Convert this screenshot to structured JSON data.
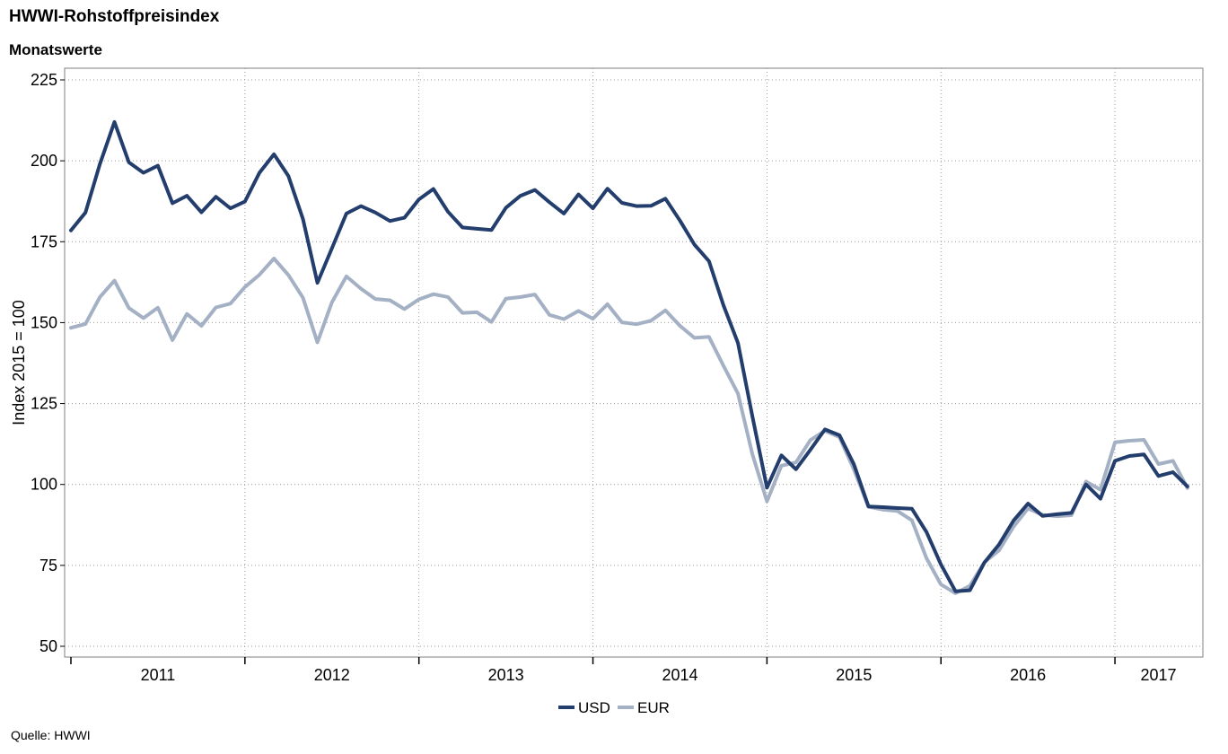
{
  "header": {
    "title": "HWWI-Rohstoffpreisindex",
    "subtitle": "Monatswerte"
  },
  "footer": {
    "source": "Quelle: HWWI"
  },
  "colors": {
    "usd": "#233d6d",
    "eur": "#a4b0c4",
    "grid": "#9a9a9a",
    "frame": "#7f7f7f"
  },
  "chart_data": {
    "type": "line",
    "title": "HWWI-Rohstoffpreisindex",
    "subtitle": "Monatswerte",
    "ylabel": "Index 2015 = 100",
    "xlabel": "",
    "ylim": [
      50,
      225
    ],
    "yticks": [
      50,
      75,
      100,
      125,
      150,
      175,
      200,
      225
    ],
    "xlim": [
      "2011-01",
      "2017-07"
    ],
    "year_labels": [
      "2011",
      "2012",
      "2013",
      "2014",
      "2015",
      "2016",
      "2017"
    ],
    "grid": true,
    "legend": "bottom-center",
    "x": [
      "2011-01",
      "2011-02",
      "2011-03",
      "2011-04",
      "2011-05",
      "2011-06",
      "2011-07",
      "2011-08",
      "2011-09",
      "2011-10",
      "2011-11",
      "2011-12",
      "2012-01",
      "2012-02",
      "2012-03",
      "2012-04",
      "2012-05",
      "2012-06",
      "2012-07",
      "2012-08",
      "2012-09",
      "2012-10",
      "2012-11",
      "2012-12",
      "2013-01",
      "2013-02",
      "2013-03",
      "2013-04",
      "2013-05",
      "2013-06",
      "2013-07",
      "2013-08",
      "2013-09",
      "2013-10",
      "2013-11",
      "2013-12",
      "2014-01",
      "2014-02",
      "2014-03",
      "2014-04",
      "2014-05",
      "2014-06",
      "2014-07",
      "2014-08",
      "2014-09",
      "2014-10",
      "2014-11",
      "2014-12",
      "2015-01",
      "2015-02",
      "2015-03",
      "2015-04",
      "2015-05",
      "2015-06",
      "2015-07",
      "2015-08",
      "2015-09",
      "2015-10",
      "2015-11",
      "2015-12",
      "2016-01",
      "2016-02",
      "2016-03",
      "2016-04",
      "2016-05",
      "2016-06",
      "2016-07",
      "2016-08",
      "2016-09",
      "2016-10",
      "2016-11",
      "2016-12",
      "2017-01",
      "2017-02",
      "2017-03",
      "2017-04",
      "2017-05",
      "2017-06"
    ],
    "series": [
      {
        "name": "USD",
        "values": [
          178.5,
          184,
          199,
          212,
          199.5,
          196.3,
          198.5,
          186.9,
          189.2,
          184.1,
          188.9,
          185.3,
          187.4,
          196.3,
          202,
          195.3,
          182,
          162.3,
          173,
          183.7,
          186,
          184,
          181.4,
          182.4,
          188.1,
          191.3,
          184.3,
          179.4,
          179,
          178.6,
          185.5,
          189.2,
          191,
          187.2,
          183.7,
          189.6,
          185.3,
          191.4,
          187,
          186,
          186.1,
          188.3,
          181.5,
          174.1,
          169,
          155.4,
          143.7,
          121,
          99,
          109,
          104.7,
          110.7,
          117,
          115.2,
          106.2,
          93.2,
          93,
          92.7,
          92.5,
          85.3,
          75.3,
          67,
          67.3,
          75.9,
          81.4,
          88.8,
          94.1,
          90.3,
          90.8,
          91.2,
          100,
          95.6,
          107.3,
          108.8,
          109.3,
          102.6,
          103.8,
          99.4
        ]
      },
      {
        "name": "EUR",
        "values": [
          148.4,
          149.6,
          157.9,
          163,
          154.5,
          151.4,
          154.6,
          144.6,
          152.7,
          149,
          154.7,
          155.9,
          161,
          164.8,
          169.8,
          164.7,
          157.7,
          143.9,
          156.3,
          164.3,
          160.5,
          157.3,
          156.9,
          154.2,
          157.2,
          158.8,
          157.9,
          153,
          153.2,
          150.2,
          157.4,
          157.9,
          158.7,
          152.4,
          151.1,
          153.6,
          151.2,
          155.7,
          150.1,
          149.5,
          150.6,
          153.8,
          149,
          145.3,
          145.6,
          136.7,
          128.1,
          109.3,
          94.8,
          105.8,
          106.8,
          113.7,
          116.6,
          114.6,
          104.6,
          93.1,
          92.2,
          91.8,
          88.9,
          77.2,
          69.1,
          66.4,
          68.7,
          76,
          79.6,
          86.9,
          92.6,
          90.6,
          90.2,
          90.5,
          100.9,
          98.4,
          113,
          113.5,
          113.8,
          106.3,
          107.3,
          98.9
        ]
      }
    ]
  }
}
